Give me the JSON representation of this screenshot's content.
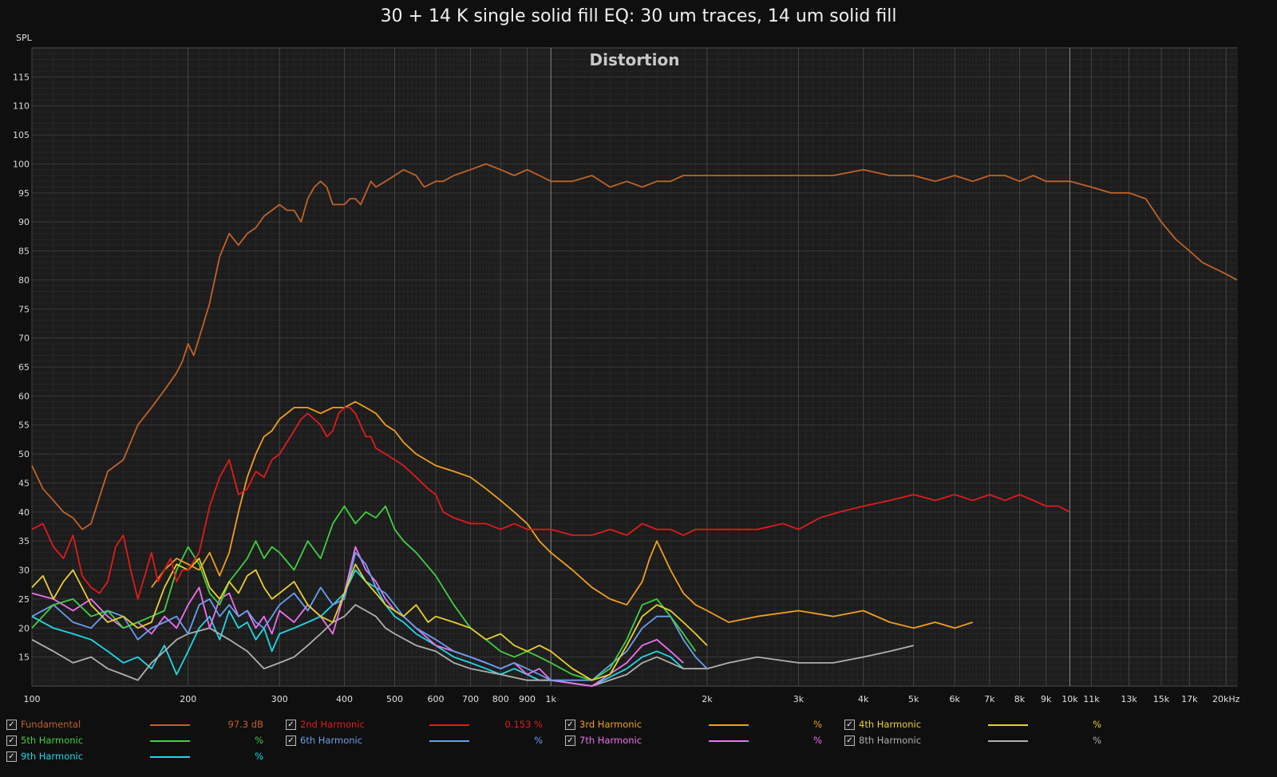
{
  "title": "30 + 14 K single solid fill EQ: 30 um traces, 14 um solid fill",
  "chart_data": {
    "type": "line",
    "subtitle": "Distortion",
    "ylabel": "SPL",
    "xscale": "log",
    "xlim": [
      100,
      21000
    ],
    "ylim": [
      10,
      120
    ],
    "grid": true,
    "x_tick_labels": [
      "100",
      "200",
      "300",
      "400",
      "500",
      "600",
      "700",
      "800",
      "900",
      "1k",
      "2k",
      "3k",
      "4k",
      "5k",
      "6k",
      "7k",
      "8k",
      "9k",
      "10k",
      "11k",
      "13k",
      "15k",
      "17k",
      "20kHz"
    ],
    "x_tick_values": [
      100,
      200,
      300,
      400,
      500,
      600,
      700,
      800,
      900,
      1000,
      2000,
      3000,
      4000,
      5000,
      6000,
      7000,
      8000,
      9000,
      10000,
      11000,
      13000,
      15000,
      17000,
      20000
    ],
    "y_tick_labels": [
      "15",
      "20",
      "25",
      "30",
      "35",
      "40",
      "45",
      "50",
      "55",
      "60",
      "65",
      "70",
      "75",
      "80",
      "85",
      "90",
      "95",
      "100",
      "105",
      "110",
      "115"
    ],
    "y_tick_values": [
      15,
      20,
      25,
      30,
      35,
      40,
      45,
      50,
      55,
      60,
      65,
      70,
      75,
      80,
      85,
      90,
      95,
      100,
      105,
      110,
      115
    ],
    "series": [
      {
        "name": "Fundamental",
        "color": "#c0622a",
        "readout": "97.3 dB",
        "checked": true,
        "x": [
          100,
          105,
          110,
          115,
          120,
          125,
          130,
          140,
          150,
          160,
          170,
          180,
          190,
          195,
          200,
          205,
          210,
          220,
          230,
          240,
          250,
          260,
          270,
          280,
          290,
          300,
          310,
          320,
          330,
          340,
          350,
          360,
          370,
          380,
          390,
          400,
          410,
          420,
          430,
          440,
          450,
          460,
          480,
          500,
          520,
          550,
          570,
          600,
          620,
          650,
          700,
          750,
          800,
          850,
          900,
          950,
          1000,
          1100,
          1200,
          1300,
          1400,
          1500,
          1600,
          1700,
          1800,
          1900,
          2000,
          2200,
          2500,
          3000,
          3500,
          4000,
          4500,
          5000,
          5500,
          6000,
          6500,
          7000,
          7500,
          8000,
          8500,
          9000,
          9500,
          10000,
          11000,
          12000,
          13000,
          14000,
          15000,
          16000,
          17000,
          18000,
          19000,
          20000,
          21000
        ],
        "y": [
          48,
          44,
          42,
          40,
          39,
          37,
          38,
          47,
          49,
          55,
          58,
          61,
          64,
          66,
          69,
          67,
          70,
          76,
          84,
          88,
          86,
          88,
          89,
          91,
          92,
          93,
          92,
          92,
          90,
          94,
          96,
          97,
          96,
          93,
          93,
          93,
          94,
          94,
          93,
          95,
          97,
          96,
          97,
          98,
          99,
          98,
          96,
          97,
          97,
          98,
          99,
          100,
          99,
          98,
          99,
          98,
          97,
          97,
          98,
          96,
          97,
          96,
          97,
          97,
          98,
          98,
          98,
          98,
          98,
          98,
          98,
          99,
          98,
          98,
          97,
          98,
          97,
          98,
          98,
          97,
          98,
          97,
          97,
          97,
          96,
          95,
          95,
          94,
          90,
          87,
          85,
          83,
          82,
          81,
          80
        ]
      },
      {
        "name": "2nd Harmonic",
        "color": "#e01b1b",
        "readout": "0.153 %",
        "checked": true,
        "x": [
          100,
          105,
          110,
          115,
          120,
          125,
          130,
          135,
          140,
          145,
          150,
          155,
          160,
          165,
          170,
          175,
          180,
          185,
          190,
          195,
          200,
          210,
          220,
          230,
          240,
          250,
          260,
          270,
          280,
          290,
          300,
          310,
          320,
          330,
          340,
          350,
          360,
          370,
          380,
          390,
          400,
          410,
          420,
          430,
          440,
          450,
          460,
          480,
          500,
          520,
          550,
          580,
          600,
          620,
          650,
          700,
          750,
          800,
          850,
          900,
          950,
          1000,
          1100,
          1200,
          1300,
          1400,
          1500,
          1600,
          1700,
          1800,
          1900,
          2000,
          2200,
          2500,
          2800,
          3000,
          3300,
          3600,
          4000,
          4500,
          5000,
          5500,
          6000,
          6500,
          7000,
          7500,
          8000,
          8500,
          9000,
          9500,
          10000
        ],
        "y": [
          37,
          38,
          34,
          32,
          36,
          29,
          27,
          26,
          28,
          34,
          36,
          30,
          25,
          29,
          33,
          28,
          30,
          32,
          28,
          30,
          30,
          33,
          41,
          46,
          49,
          43,
          44,
          47,
          46,
          49,
          50,
          52,
          54,
          56,
          57,
          56,
          55,
          53,
          54,
          57,
          58,
          58,
          57,
          55,
          53,
          53,
          51,
          50,
          49,
          48,
          46,
          44,
          43,
          40,
          39,
          38,
          38,
          37,
          38,
          37,
          37,
          37,
          36,
          36,
          37,
          36,
          38,
          37,
          37,
          36,
          37,
          37,
          37,
          37,
          38,
          37,
          39,
          40,
          41,
          42,
          43,
          42,
          43,
          42,
          43,
          42,
          43,
          42,
          41,
          41,
          40
        ]
      },
      {
        "name": "3rd Harmonic",
        "color": "#f0a020",
        "readout": "%",
        "checked": true,
        "x": [
          170,
          180,
          190,
          200,
          210,
          220,
          230,
          240,
          250,
          260,
          270,
          280,
          290,
          300,
          320,
          340,
          360,
          380,
          400,
          420,
          440,
          460,
          480,
          500,
          520,
          550,
          600,
          650,
          700,
          750,
          800,
          850,
          900,
          950,
          1000,
          1100,
          1200,
          1300,
          1400,
          1500,
          1550,
          1600,
          1700,
          1800,
          1900,
          2000,
          2200,
          2500,
          3000,
          3500,
          4000,
          4500,
          5000,
          5500,
          6000,
          6500
        ],
        "y": [
          27,
          30,
          32,
          31,
          30,
          33,
          29,
          33,
          40,
          46,
          50,
          53,
          54,
          56,
          58,
          58,
          57,
          58,
          58,
          59,
          58,
          57,
          55,
          54,
          52,
          50,
          48,
          47,
          46,
          44,
          42,
          40,
          38,
          35,
          33,
          30,
          27,
          25,
          24,
          28,
          32,
          35,
          30,
          26,
          24,
          23,
          21,
          22,
          23,
          22,
          23,
          21,
          20,
          21,
          20,
          21
        ]
      },
      {
        "name": "4th Harmonic",
        "color": "#e8d030",
        "readout": "%",
        "checked": true,
        "x": [
          100,
          105,
          110,
          115,
          120,
          130,
          140,
          150,
          160,
          170,
          180,
          190,
          200,
          210,
          220,
          230,
          240,
          250,
          260,
          270,
          280,
          290,
          300,
          320,
          340,
          360,
          380,
          400,
          420,
          440,
          460,
          480,
          500,
          520,
          550,
          580,
          600,
          650,
          700,
          750,
          800,
          850,
          900,
          950,
          1000,
          1100,
          1200,
          1300,
          1400,
          1500,
          1600,
          1700,
          1800,
          1900,
          2000
        ],
        "y": [
          27,
          29,
          25,
          28,
          30,
          24,
          21,
          22,
          20,
          21,
          27,
          31,
          30,
          32,
          27,
          25,
          28,
          26,
          29,
          30,
          27,
          25,
          26,
          28,
          24,
          22,
          21,
          26,
          31,
          28,
          26,
          24,
          23,
          22,
          24,
          21,
          22,
          21,
          20,
          18,
          19,
          17,
          16,
          17,
          16,
          13,
          11,
          12,
          17,
          22,
          24,
          23,
          21,
          19,
          17
        ]
      },
      {
        "name": "5th Harmonic",
        "color": "#40d040",
        "readout": "%",
        "checked": true,
        "x": [
          100,
          110,
          120,
          130,
          140,
          150,
          160,
          170,
          180,
          190,
          200,
          210,
          220,
          230,
          240,
          250,
          260,
          270,
          280,
          290,
          300,
          320,
          340,
          360,
          380,
          400,
          420,
          440,
          460,
          480,
          500,
          520,
          550,
          600,
          650,
          700,
          750,
          800,
          850,
          900,
          950,
          1000,
          1100,
          1200,
          1300,
          1400,
          1500,
          1600,
          1700,
          1800,
          1900
        ],
        "y": [
          20,
          24,
          25,
          22,
          23,
          20,
          21,
          22,
          23,
          30,
          34,
          31,
          26,
          24,
          28,
          30,
          32,
          35,
          32,
          34,
          33,
          30,
          35,
          32,
          38,
          41,
          38,
          40,
          39,
          41,
          37,
          35,
          33,
          29,
          24,
          20,
          18,
          16,
          15,
          16,
          15,
          14,
          12,
          11,
          13,
          18,
          24,
          25,
          22,
          19,
          16
        ]
      },
      {
        "name": "6th Harmonic",
        "color": "#6a9ff0",
        "readout": "%",
        "checked": true,
        "x": [
          100,
          110,
          120,
          130,
          140,
          150,
          160,
          170,
          180,
          190,
          200,
          210,
          220,
          230,
          240,
          250,
          260,
          270,
          280,
          290,
          300,
          320,
          340,
          360,
          380,
          400,
          420,
          440,
          460,
          480,
          500,
          520,
          550,
          600,
          650,
          700,
          750,
          800,
          850,
          900,
          950,
          1000,
          1200,
          1400,
          1500,
          1600,
          1700,
          1800,
          1900,
          2000
        ],
        "y": [
          22,
          24,
          21,
          20,
          23,
          22,
          18,
          20,
          21,
          22,
          19,
          24,
          25,
          22,
          24,
          22,
          23,
          21,
          20,
          22,
          24,
          26,
          23,
          27,
          24,
          25,
          33,
          31,
          27,
          26,
          24,
          22,
          20,
          18,
          16,
          15,
          14,
          13,
          14,
          13,
          12,
          11,
          11,
          16,
          20,
          22,
          22,
          18,
          15,
          13
        ]
      },
      {
        "name": "7th Harmonic",
        "color": "#f070f0",
        "readout": "%",
        "checked": true,
        "x": [
          100,
          110,
          120,
          130,
          140,
          150,
          160,
          170,
          180,
          190,
          200,
          210,
          220,
          230,
          240,
          250,
          260,
          270,
          280,
          290,
          300,
          320,
          340,
          360,
          380,
          400,
          420,
          440,
          460,
          480,
          500,
          520,
          550,
          600,
          650,
          700,
          750,
          800,
          850,
          900,
          950,
          1000,
          1200,
          1400,
          1500,
          1600,
          1700,
          1800
        ],
        "y": [
          26,
          25,
          23,
          25,
          22,
          20,
          21,
          19,
          22,
          20,
          24,
          27,
          20,
          25,
          26,
          22,
          23,
          20,
          22,
          19,
          23,
          21,
          24,
          22,
          19,
          26,
          34,
          30,
          28,
          25,
          23,
          22,
          20,
          17,
          16,
          15,
          14,
          13,
          14,
          12,
          13,
          11,
          10,
          14,
          17,
          18,
          16,
          14
        ]
      },
      {
        "name": "8th Harmonic",
        "color": "#b0b0b0",
        "readout": "%",
        "checked": true,
        "x": [
          100,
          110,
          120,
          130,
          140,
          150,
          160,
          170,
          180,
          190,
          200,
          220,
          240,
          260,
          280,
          300,
          320,
          340,
          360,
          380,
          400,
          420,
          440,
          460,
          480,
          500,
          550,
          600,
          650,
          700,
          800,
          900,
          1000,
          1200,
          1400,
          1500,
          1600,
          1700,
          1800,
          2000,
          2200,
          2500,
          3000,
          3500,
          4000,
          4500,
          5000
        ],
        "y": [
          18,
          16,
          14,
          15,
          13,
          12,
          11,
          14,
          16,
          18,
          19,
          20,
          18,
          16,
          13,
          14,
          15,
          17,
          19,
          21,
          22,
          24,
          23,
          22,
          20,
          19,
          17,
          16,
          14,
          13,
          12,
          11,
          11,
          10,
          12,
          14,
          15,
          14,
          13,
          13,
          14,
          15,
          14,
          14,
          15,
          16,
          17
        ]
      },
      {
        "name": "9th Harmonic",
        "color": "#20d8e8",
        "readout": "%",
        "checked": true,
        "x": [
          100,
          110,
          120,
          130,
          140,
          150,
          160,
          170,
          180,
          190,
          200,
          210,
          220,
          230,
          240,
          250,
          260,
          270,
          280,
          290,
          300,
          320,
          340,
          360,
          380,
          400,
          420,
          440,
          460,
          480,
          500,
          520,
          550,
          600,
          650,
          700,
          750,
          800,
          850,
          900,
          950,
          1000,
          1200,
          1400,
          1500,
          1600,
          1700,
          1800
        ],
        "y": [
          22,
          20,
          19,
          18,
          16,
          14,
          15,
          13,
          17,
          12,
          16,
          20,
          22,
          18,
          23,
          20,
          21,
          18,
          20,
          16,
          19,
          20,
          21,
          22,
          24,
          26,
          30,
          28,
          27,
          24,
          22,
          21,
          19,
          17,
          15,
          14,
          13,
          12,
          13,
          12,
          11,
          11,
          10,
          13,
          15,
          16,
          15,
          13
        ]
      }
    ]
  }
}
